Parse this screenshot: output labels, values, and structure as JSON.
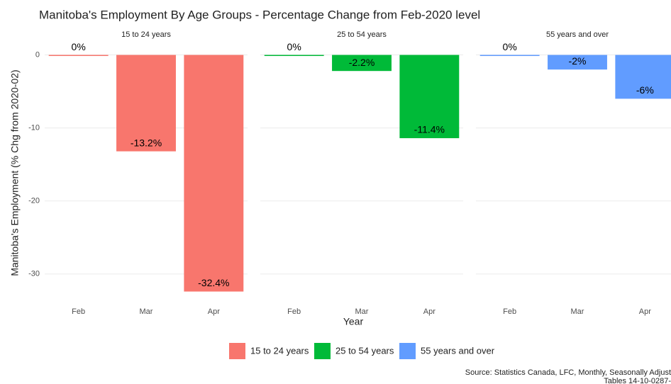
{
  "chart_data": {
    "type": "bar",
    "title": "Manitoba's Employment By Age Groups - Percentage Change from Feb-2020 level",
    "ylabel": "Manitoba's Employment (% Chg from 2020-02)",
    "xlabel": "Year",
    "caption": [
      "Source: Statistics Canada, LFC, Monthly, Seasonally Adjust",
      "Tables 14-10-0287-"
    ],
    "categories": [
      "Feb",
      "Mar",
      "Apr"
    ],
    "series": [
      {
        "name": "15 to 24 years",
        "color": "#f8766d",
        "values": [
          0,
          -13.2,
          -32.4
        ],
        "value_labels": [
          "0%",
          "-13.2%",
          "-32.4%"
        ]
      },
      {
        "name": "25 to 54 years",
        "color": "#00ba38",
        "values": [
          0,
          -2.2,
          -11.4
        ],
        "value_labels": [
          "0%",
          "-2.2%",
          "-11.4%"
        ]
      },
      {
        "name": "55 years and over",
        "color": "#619cff",
        "values": [
          0,
          -2,
          -6
        ],
        "value_labels": [
          "0%",
          "-2%",
          "-6%"
        ]
      }
    ],
    "ylim": [
      -34,
      1.7
    ],
    "yticks": [
      -30,
      -20,
      -10,
      0
    ],
    "grid": true,
    "legend": "bottom"
  }
}
